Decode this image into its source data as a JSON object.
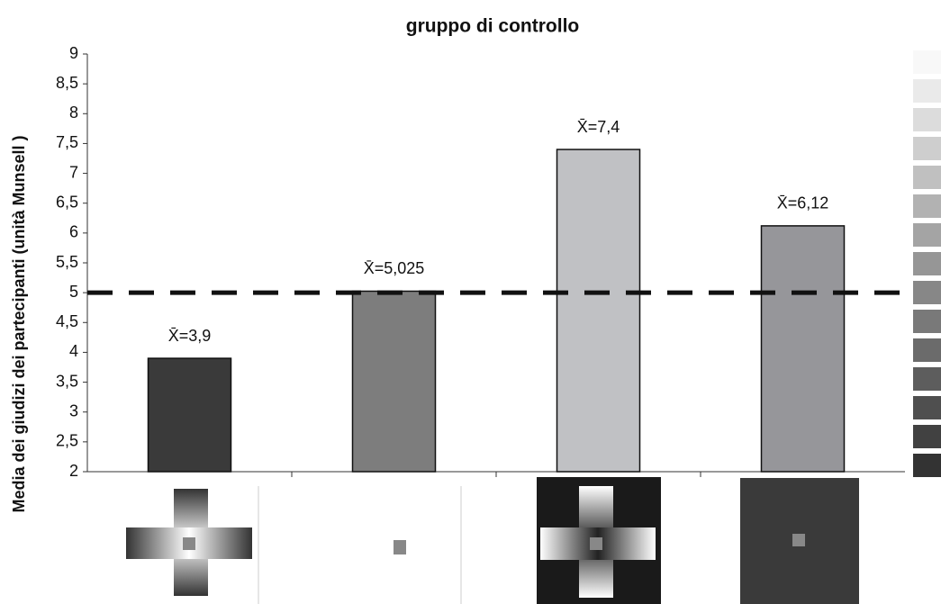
{
  "chart_data": {
    "type": "bar",
    "title": "gruppo di controllo",
    "y_label": "Media dei giudizi dei partecipanti (unità Munsell )",
    "categories": [
      null,
      null,
      null,
      null
    ],
    "values": [
      3.9,
      5.025,
      7.4,
      6.12
    ],
    "value_labels": [
      "X̄=3,9",
      "X̄=5,025",
      "X̄=7,4",
      "X̄=6,12"
    ],
    "colors": [
      "#3a3a3a",
      "#7d7d7d",
      "#c0c1c4",
      "#96969a"
    ],
    "ylim": [
      2,
      9
    ],
    "yticks": [
      2,
      {
        "value": 2.5,
        "label": "2,5"
      },
      3,
      {
        "value": 3.5,
        "label": "3,5"
      },
      4,
      {
        "value": 4.5,
        "label": "4,5"
      },
      5,
      {
        "value": 5.5,
        "label": "5,5"
      },
      6,
      {
        "value": 6.5,
        "label": "6,5"
      },
      7,
      {
        "value": 7.5,
        "label": "7,5"
      },
      8,
      {
        "value": 8.5,
        "label": "8,5"
      },
      9
    ],
    "reference_line": 5
  }
}
